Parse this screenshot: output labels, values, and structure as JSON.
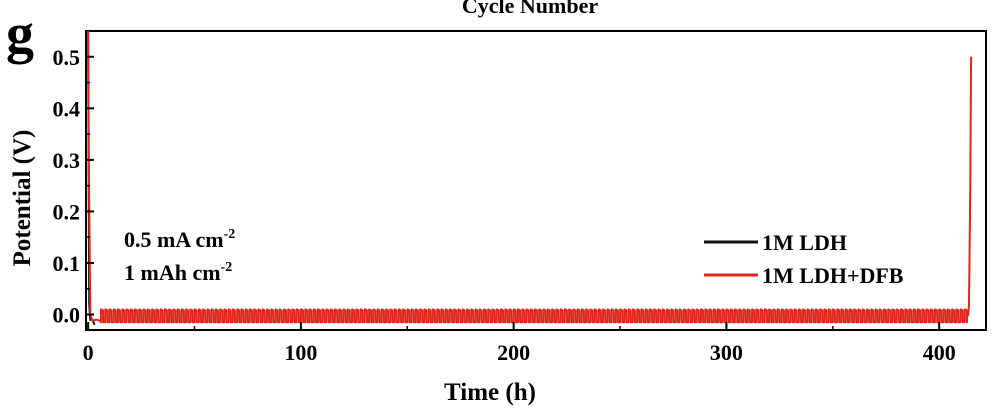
{
  "panel_letter": "g",
  "top_clipped_label": "Cycle Number",
  "colors": {
    "ldh": "#111111",
    "dfb": "#e0261d",
    "axis": "#000000"
  },
  "annotations": [
    "0.5 mA cm",
    "-2",
    "1 mAh cm",
    "-2"
  ],
  "chart_data": {
    "type": "line",
    "title": "",
    "xlabel": "Time (h)",
    "ylabel": "Potential (V)",
    "xlim": [
      -1,
      422
    ],
    "ylim": [
      -0.03,
      0.55
    ],
    "xticks": [
      0,
      100,
      200,
      300,
      400
    ],
    "xtick_labels": [
      "0",
      "100",
      "200",
      "300",
      "400"
    ],
    "yticks": [
      0.0,
      0.1,
      0.2,
      0.3,
      0.4,
      0.5
    ],
    "ytick_labels": [
      "0.0",
      "0.1",
      "0.2",
      "0.3",
      "0.4",
      "0.5"
    ],
    "legend_position": "bottom-right",
    "series": [
      {
        "name": "1M LDH",
        "color": "#111111",
        "points": [
          [
            0,
            0.55
          ],
          [
            0.5,
            0.02
          ],
          [
            1,
            -0.01
          ],
          [
            2,
            -0.01
          ],
          [
            3,
            -0.02
          ]
        ]
      },
      {
        "name": "1M LDH+DFB",
        "color": "#e0261d",
        "cycle_period_h": 2,
        "upper_potential": 0.01,
        "lower_potential": -0.015,
        "cycling_range": [
          6,
          414
        ],
        "points": [
          [
            0,
            0.55
          ],
          [
            1,
            0.0
          ],
          [
            5,
            -0.01
          ],
          [
            6,
            0.015
          ],
          [
            412,
            0.012
          ],
          [
            414,
            0.02
          ],
          [
            415,
            0.5
          ]
        ]
      }
    ]
  }
}
